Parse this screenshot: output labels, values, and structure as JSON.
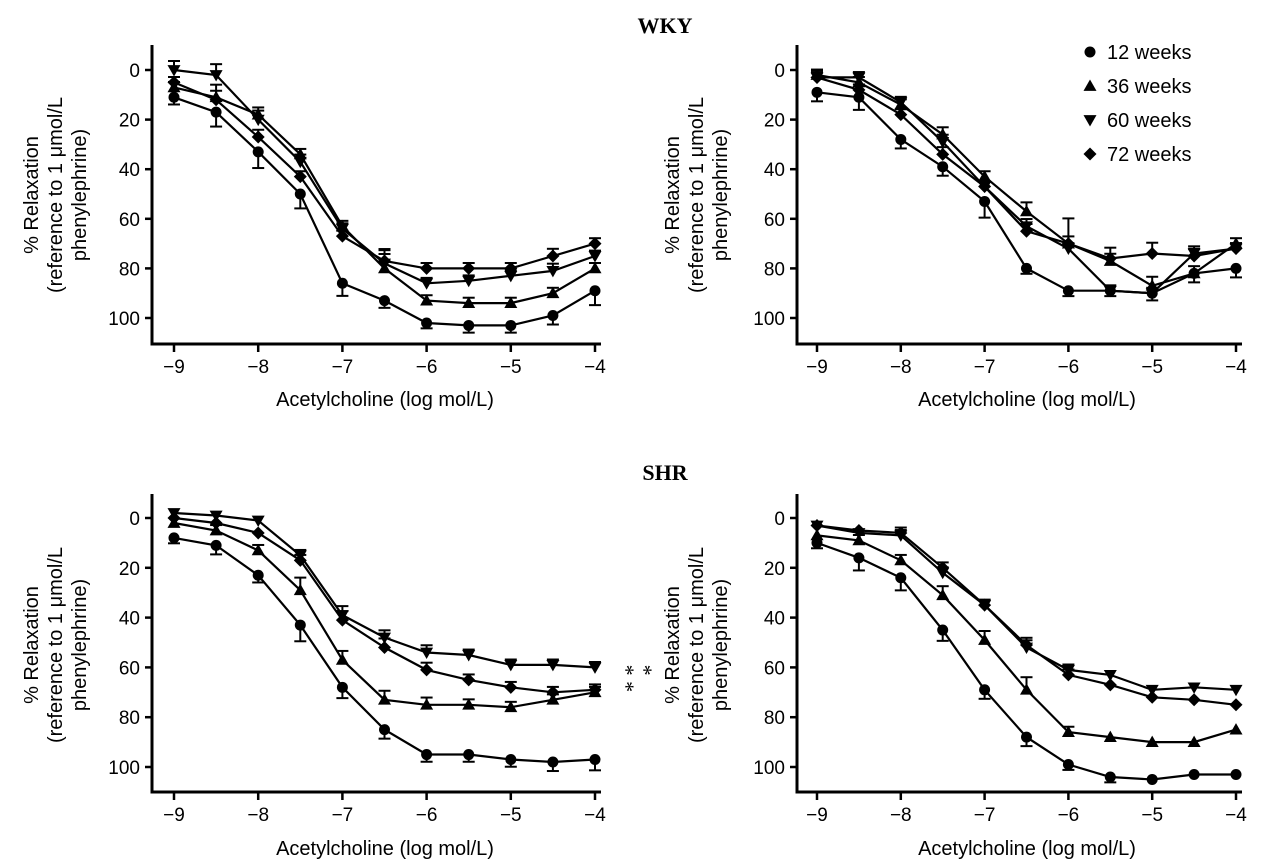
{
  "figure": {
    "sections": [
      "WKY",
      "SHR"
    ]
  },
  "chart_data": [
    {
      "type": "line",
      "panel": "WKY left",
      "x": [
        -9,
        -8.5,
        -8,
        -7.5,
        -7,
        -6.5,
        -6,
        -5.5,
        -5,
        -4.5,
        -4
      ],
      "xlabel": "Acetylcholine (log mol/L)",
      "ylabel": "% Relaxation (reference to 1 μmol/L phenylephrine)",
      "xlim": [
        -9,
        -4
      ],
      "ylim": [
        110,
        -8
      ],
      "xticks": [
        -9,
        -8,
        -7,
        -6,
        -5,
        -4
      ],
      "yticks": [
        0,
        20,
        40,
        60,
        80,
        100
      ],
      "series": [
        {
          "name": "12 weeks",
          "marker": "circle",
          "values": [
            11,
            17,
            33,
            50,
            86,
            93,
            102,
            103,
            103,
            99,
            89
          ]
        },
        {
          "name": "36 weeks",
          "marker": "triangle-up",
          "values": [
            7,
            11,
            18,
            34,
            63,
            80,
            93,
            94,
            94,
            90,
            80
          ]
        },
        {
          "name": "60 weeks",
          "marker": "triangle-down",
          "values": [
            0,
            2,
            20,
            37,
            64,
            78,
            86,
            85,
            83,
            81,
            75
          ]
        },
        {
          "name": "72 weeks",
          "marker": "diamond",
          "values": [
            5,
            12,
            27,
            43,
            67,
            77,
            80,
            80,
            80,
            75,
            70
          ]
        }
      ]
    },
    {
      "type": "line",
      "panel": "WKY right",
      "x": [
        -9,
        -8.5,
        -8,
        -7.5,
        -7,
        -6.5,
        -6,
        -5.5,
        -5,
        -4.5,
        -4
      ],
      "xlabel": "Acetylcholine (log mol/L)",
      "ylabel": "% Relaxation (reference to 1 μmol/L phenylephrine)",
      "xlim": [
        -9,
        -4
      ],
      "ylim": [
        110,
        -8
      ],
      "xticks": [
        -9,
        -8,
        -7,
        -6,
        -5,
        -4
      ],
      "yticks": [
        0,
        20,
        40,
        60,
        80,
        100
      ],
      "legend": {
        "position": "top-right",
        "entries": [
          "12 weeks",
          "36 weeks",
          "60 weeks",
          "72 weeks"
        ]
      },
      "series": [
        {
          "name": "12 weeks",
          "marker": "circle",
          "values": [
            9,
            11,
            28,
            39,
            53,
            80,
            89,
            89,
            90,
            82,
            80
          ]
        },
        {
          "name": "36 weeks",
          "marker": "triangle-up",
          "values": [
            2,
            5,
            14,
            26,
            43,
            57,
            70,
            77,
            87,
            82,
            70
          ]
        },
        {
          "name": "60 weeks",
          "marker": "triangle-down",
          "values": [
            3,
            3,
            13,
            29,
            47,
            63,
            72,
            89,
            90,
            74,
            72
          ]
        },
        {
          "name": "72 weeks",
          "marker": "diamond",
          "values": [
            3,
            8,
            18,
            34,
            47,
            65,
            70,
            76,
            74,
            75,
            72
          ]
        }
      ]
    },
    {
      "type": "line",
      "panel": "SHR left",
      "x": [
        -9,
        -8.5,
        -8,
        -7.5,
        -7,
        -6.5,
        -6,
        -5.5,
        -5,
        -4.5,
        -4
      ],
      "xlabel": "Acetylcholine (log mol/L)",
      "ylabel": "% Relaxation (reference to 1 μmol/L phenylephrine)",
      "xlim": [
        -9,
        -4
      ],
      "ylim": [
        110,
        -8
      ],
      "xticks": [
        -9,
        -8,
        -7,
        -6,
        -5,
        -4
      ],
      "yticks": [
        0,
        20,
        40,
        60,
        80,
        100
      ],
      "annotation": "* *\n*",
      "series": [
        {
          "name": "12 weeks",
          "marker": "circle",
          "values": [
            8,
            11,
            23,
            43,
            68,
            85,
            95,
            95,
            97,
            98,
            97
          ]
        },
        {
          "name": "36 weeks",
          "marker": "triangle-up",
          "values": [
            2,
            5,
            13,
            29,
            57,
            73,
            75,
            75,
            76,
            73,
            70
          ]
        },
        {
          "name": "60 weeks",
          "marker": "triangle-down",
          "values": [
            -2,
            -1,
            1,
            15,
            39,
            48,
            54,
            55,
            59,
            59,
            60
          ]
        },
        {
          "name": "72 weeks",
          "marker": "diamond",
          "values": [
            0,
            2,
            6,
            17,
            41,
            52,
            61,
            65,
            68,
            70,
            69
          ]
        }
      ]
    },
    {
      "type": "line",
      "panel": "SHR right",
      "x": [
        -9,
        -8.5,
        -8,
        -7.5,
        -7,
        -6.5,
        -6,
        -5.5,
        -5,
        -4.5,
        -4
      ],
      "xlabel": "Acetylcholine (log mol/L)",
      "ylabel": "% Relaxation (reference to 1 μmol/L phenylephrine)",
      "xlim": [
        -9,
        -4
      ],
      "ylim": [
        110,
        -8
      ],
      "xticks": [
        -9,
        -8,
        -7,
        -6,
        -5,
        -4
      ],
      "yticks": [
        0,
        20,
        40,
        60,
        80,
        100
      ],
      "annotation": "* *\n*",
      "series": [
        {
          "name": "12 weeks",
          "marker": "circle",
          "values": [
            10,
            16,
            24,
            45,
            69,
            88,
            99,
            104,
            105,
            103,
            103
          ]
        },
        {
          "name": "36 weeks",
          "marker": "triangle-up",
          "values": [
            7,
            9,
            17,
            31,
            49,
            69,
            86,
            88,
            90,
            90,
            85
          ]
        },
        {
          "name": "60 weeks",
          "marker": "triangle-down",
          "values": [
            3,
            6,
            7,
            22,
            35,
            52,
            61,
            63,
            69,
            68,
            69
          ]
        },
        {
          "name": "72 weeks",
          "marker": "diamond",
          "values": [
            3,
            5,
            6,
            20,
            35,
            51,
            63,
            67,
            72,
            73,
            75
          ]
        }
      ]
    }
  ]
}
